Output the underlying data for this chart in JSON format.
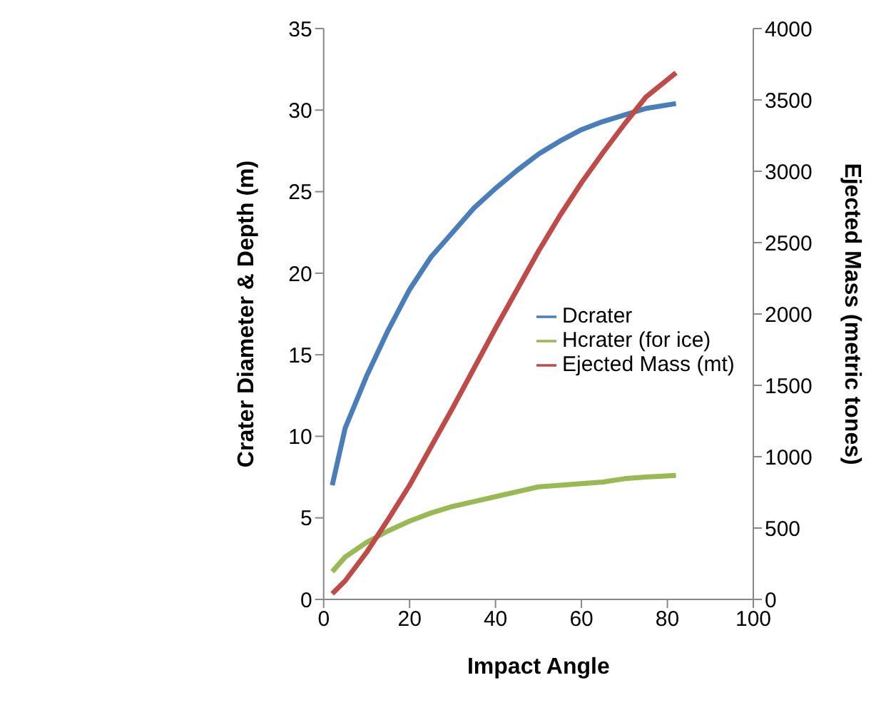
{
  "chart_data": {
    "type": "line",
    "xlabel": "Impact Angle",
    "ylabel": "Crater Diameter & Depth (m)",
    "y2label": "Ejected Mass (metric tones)",
    "x": [
      2,
      5,
      10,
      15,
      20,
      25,
      30,
      35,
      40,
      45,
      50,
      55,
      60,
      65,
      70,
      75,
      82
    ],
    "series": [
      {
        "name": "Dcrater",
        "color": "#4a7ebb",
        "values": [
          7,
          10.5,
          13.7,
          16.5,
          19,
          21,
          22.5,
          24,
          25.2,
          26.3,
          27.3,
          28.1,
          28.8,
          29.3,
          29.7,
          30.1,
          30.4
        ]
      },
      {
        "name": "Hcrater (for ice)",
        "color": "#98b954",
        "values": [
          1.7,
          2.6,
          3.5,
          4.2,
          4.8,
          5.3,
          5.7,
          6,
          6.3,
          6.6,
          6.9,
          7,
          7.1,
          7.2,
          7.4,
          7.5,
          7.6
        ]
      },
      {
        "name": "Ejected Mass (mt)",
        "color": "#be4b48",
        "axis": "y2",
        "values": [
          40,
          130,
          330,
          560,
          800,
          1070,
          1340,
          1620,
          1900,
          2170,
          2440,
          2690,
          2920,
          3130,
          3330,
          3520,
          3690
        ]
      }
    ],
    "xlim": [
      0,
      100
    ],
    "xticks": [
      0,
      20,
      40,
      60,
      80,
      100
    ],
    "ylim": [
      0,
      35
    ],
    "yticks": [
      0,
      5,
      10,
      15,
      20,
      25,
      30,
      35
    ],
    "y2lim": [
      0,
      4000
    ],
    "y2ticks": [
      0,
      500,
      1000,
      1500,
      2000,
      2500,
      3000,
      3500,
      4000
    ],
    "grid": false,
    "legend": "right",
    "marker": "none",
    "line_style": "solid"
  }
}
